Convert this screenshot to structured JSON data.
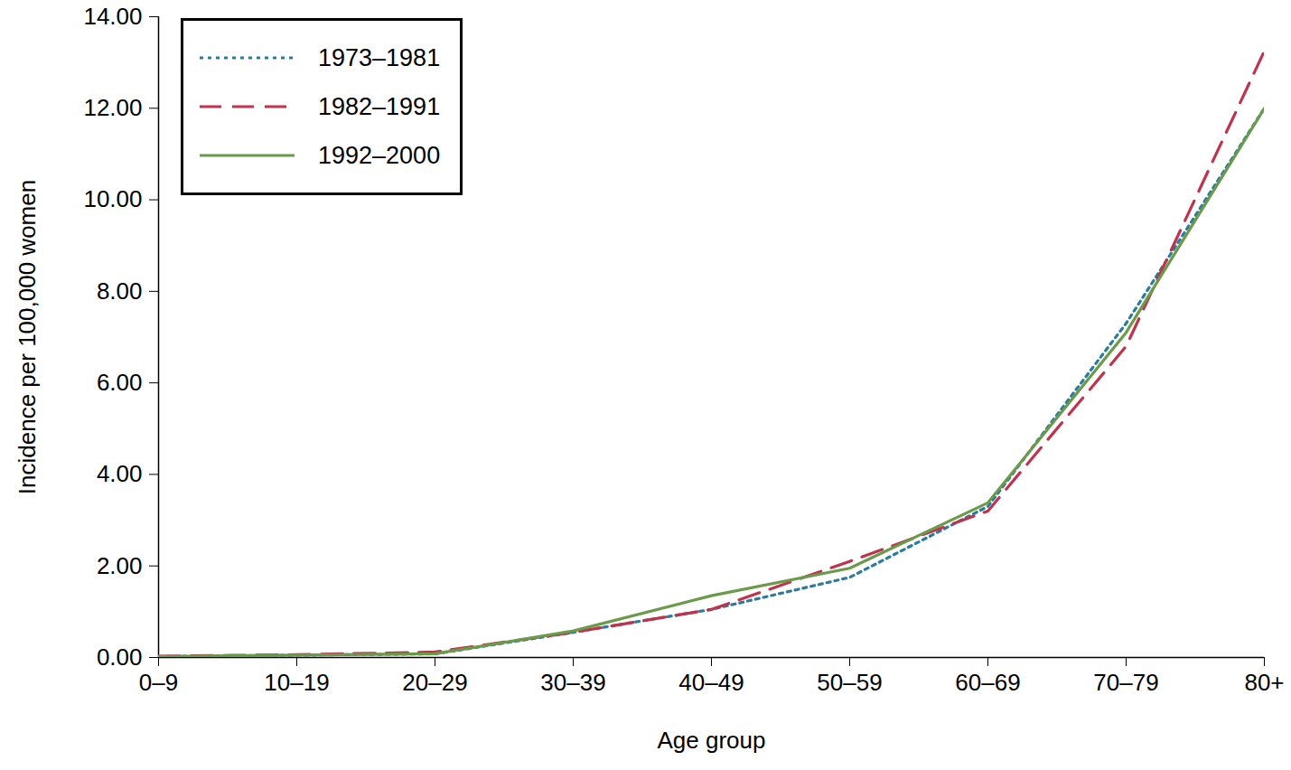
{
  "chart_data": {
    "type": "line",
    "x_label": "Age group",
    "y_label": "Incidence per 100,000 women",
    "categories": [
      "0–9",
      "10–19",
      "20–29",
      "30–39",
      "40–49",
      "50–59",
      "60–69",
      "70–79",
      "80+"
    ],
    "series": [
      {
        "name": "1973–1981",
        "color": "#2b7b9e",
        "line_style": "dotted",
        "values": [
          0.02,
          0.05,
          0.08,
          0.55,
          1.05,
          1.75,
          3.3,
          7.3,
          12.0
        ]
      },
      {
        "name": "1982–1991",
        "color": "#c0334d",
        "line_style": "dashed",
        "values": [
          0.03,
          0.06,
          0.12,
          0.55,
          1.05,
          2.1,
          3.2,
          6.8,
          13.25
        ]
      },
      {
        "name": "1992–2000",
        "color": "#6a9a4a",
        "line_style": "solid",
        "values": [
          0.02,
          0.05,
          0.08,
          0.58,
          1.35,
          1.95,
          3.38,
          7.1,
          12.0
        ]
      }
    ],
    "ylim": [
      0,
      14
    ],
    "yticks": [
      {
        "value": 0,
        "label": "0.00"
      },
      {
        "value": 2,
        "label": "2.00"
      },
      {
        "value": 4,
        "label": "4.00"
      },
      {
        "value": 6,
        "label": "6.00"
      },
      {
        "value": 8,
        "label": "8.00"
      },
      {
        "value": 10,
        "label": "10.00"
      },
      {
        "value": 12,
        "label": "12.00"
      },
      {
        "value": 14,
        "label": "14.00"
      }
    ],
    "grid": false,
    "legend": "top-left"
  }
}
